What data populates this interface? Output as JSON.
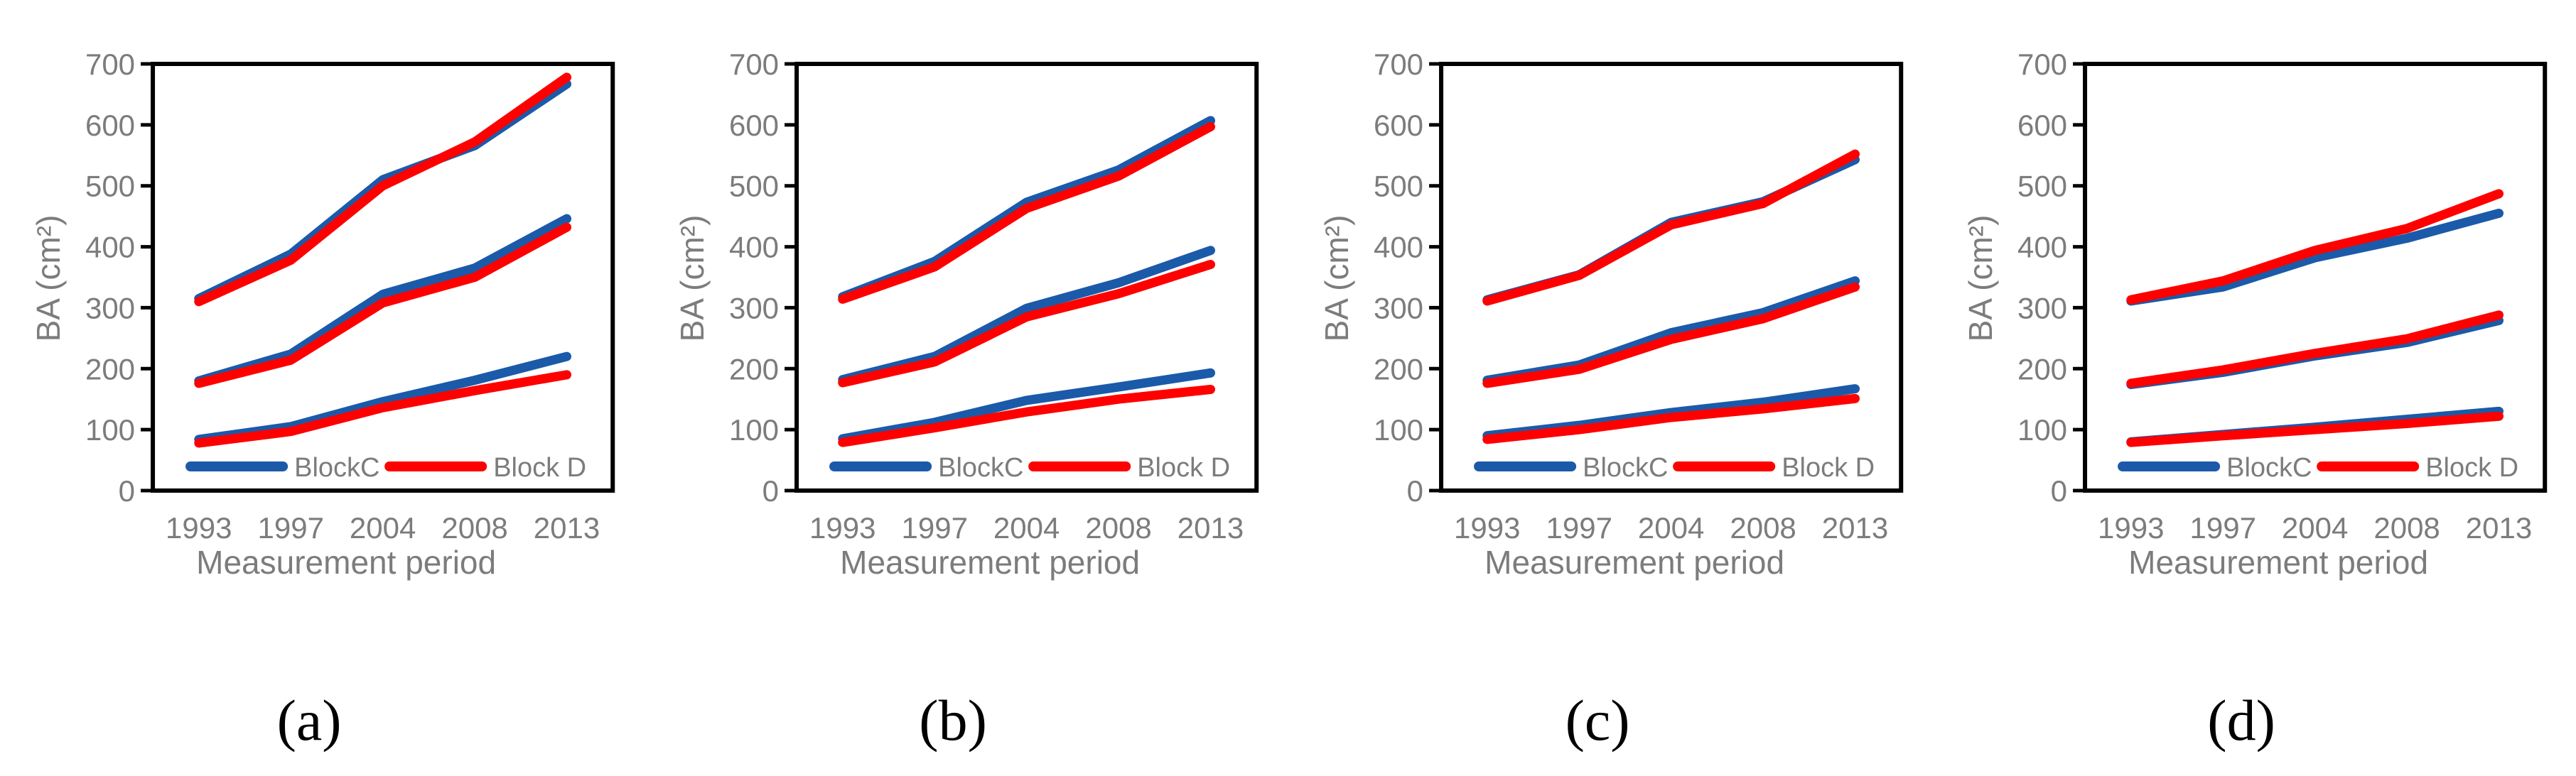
{
  "figure": {
    "background": "#FFFFFF",
    "colors": {
      "blockc_blue": "#1B5AA9",
      "blockd_red": "#FF0000",
      "axis_text_gray": "#7C7C7C",
      "frame_black": "#000000"
    }
  },
  "chart_data": [
    {
      "type": "line",
      "caption": "(a)",
      "categories": [
        "1993",
        "1997",
        "2004",
        "2008",
        "2013"
      ],
      "xlabel": "Measurement period",
      "ylabel": "BA (cm²)",
      "ylim": [
        0,
        700
      ],
      "y_ticks": [
        700,
        600,
        500,
        400,
        300,
        200,
        100,
        0
      ],
      "grid": false,
      "legend_position": "inside-bottom",
      "legend": [
        {
          "label": "BlockC",
          "color": "#1B5AA9"
        },
        {
          "label": "Block D",
          "color": "#FF0000"
        }
      ],
      "series": [
        {
          "name": "BlockC",
          "tier": "upper",
          "color": "#1B5AA9",
          "values": [
            315,
            388,
            510,
            566,
            667
          ]
        },
        {
          "name": "BlockC",
          "tier": "middle",
          "color": "#1B5AA9",
          "values": [
            180,
            224,
            322,
            365,
            446
          ]
        },
        {
          "name": "BlockC",
          "tier": "lower",
          "color": "#1B5AA9",
          "values": [
            84,
            105,
            146,
            181,
            220
          ]
        },
        {
          "name": "Block D",
          "tier": "upper",
          "color": "#FF0000",
          "values": [
            310,
            378,
            500,
            572,
            678
          ]
        },
        {
          "name": "Block D",
          "tier": "middle",
          "color": "#FF0000",
          "values": [
            176,
            214,
            308,
            350,
            432
          ]
        },
        {
          "name": "Block D",
          "tier": "lower",
          "color": "#FF0000",
          "values": [
            78,
            97,
            136,
            164,
            190
          ]
        }
      ]
    },
    {
      "type": "line",
      "caption": "(b)",
      "categories": [
        "1993",
        "1997",
        "2004",
        "2008",
        "2013"
      ],
      "xlabel": "Measurement period",
      "ylabel": "BA (cm²)",
      "ylim": [
        0,
        700
      ],
      "y_ticks": [
        700,
        600,
        500,
        400,
        300,
        200,
        100,
        0
      ],
      "grid": false,
      "legend_position": "inside-bottom",
      "legend": [
        {
          "label": "BlockC",
          "color": "#1B5AA9"
        },
        {
          "label": "Block D",
          "color": "#FF0000"
        }
      ],
      "series": [
        {
          "name": "BlockC",
          "tier": "upper",
          "color": "#1B5AA9",
          "values": [
            318,
            376,
            473,
            526,
            607
          ]
        },
        {
          "name": "BlockC",
          "tier": "middle",
          "color": "#1B5AA9",
          "values": [
            182,
            220,
            299,
            341,
            394
          ]
        },
        {
          "name": "BlockC",
          "tier": "lower",
          "color": "#1B5AA9",
          "values": [
            85,
            112,
            148,
            170,
            193
          ]
        },
        {
          "name": "Block D",
          "tier": "upper",
          "color": "#FF0000",
          "values": [
            314,
            367,
            463,
            516,
            597
          ]
        },
        {
          "name": "Block D",
          "tier": "middle",
          "color": "#FF0000",
          "values": [
            177,
            211,
            285,
            323,
            371
          ]
        },
        {
          "name": "Block D",
          "tier": "lower",
          "color": "#FF0000",
          "values": [
            79,
            103,
            129,
            150,
            166
          ]
        }
      ]
    },
    {
      "type": "line",
      "caption": "(c)",
      "categories": [
        "1993",
        "1997",
        "2004",
        "2008",
        "2013"
      ],
      "xlabel": "Measurement period",
      "ylabel": "BA (cm²)",
      "ylim": [
        0,
        700
      ],
      "y_ticks": [
        700,
        600,
        500,
        400,
        300,
        200,
        100,
        0
      ],
      "grid": false,
      "legend_position": "inside-bottom",
      "legend": [
        {
          "label": "BlockC",
          "color": "#1B5AA9"
        },
        {
          "label": "Block D",
          "color": "#FF0000"
        }
      ],
      "series": [
        {
          "name": "BlockC",
          "tier": "upper",
          "color": "#1B5AA9",
          "values": [
            313,
            354,
            440,
            474,
            543
          ]
        },
        {
          "name": "BlockC",
          "tier": "middle",
          "color": "#1B5AA9",
          "values": [
            181,
            206,
            259,
            292,
            344
          ]
        },
        {
          "name": "BlockC",
          "tier": "lower",
          "color": "#1B5AA9",
          "values": [
            90,
            107,
            128,
            145,
            167
          ]
        },
        {
          "name": "Block D",
          "tier": "upper",
          "color": "#FF0000",
          "values": [
            311,
            353,
            436,
            471,
            552
          ]
        },
        {
          "name": "Block D",
          "tier": "middle",
          "color": "#FF0000",
          "values": [
            176,
            199,
            248,
            282,
            334
          ]
        },
        {
          "name": "Block D",
          "tier": "lower",
          "color": "#FF0000",
          "values": [
            84,
            100,
            120,
            134,
            151
          ]
        }
      ]
    },
    {
      "type": "line",
      "caption": "(d)",
      "categories": [
        "1993",
        "1997",
        "2004",
        "2008",
        "2013"
      ],
      "xlabel": "Measurement period",
      "ylabel": "BA (cm²)",
      "ylim": [
        0,
        700
      ],
      "y_ticks": [
        700,
        600,
        500,
        400,
        300,
        200,
        100,
        0
      ],
      "grid": false,
      "legend_position": "inside-bottom",
      "legend": [
        {
          "label": "BlockC",
          "color": "#1B5AA9"
        },
        {
          "label": "Block D",
          "color": "#FF0000"
        }
      ],
      "series": [
        {
          "name": "BlockC",
          "tier": "upper",
          "color": "#1B5AA9",
          "values": [
            311,
            334,
            382,
            414,
            455
          ]
        },
        {
          "name": "BlockC",
          "tier": "middle",
          "color": "#1B5AA9",
          "values": [
            174,
            194,
            221,
            243,
            279
          ]
        },
        {
          "name": "BlockC",
          "tier": "lower",
          "color": "#1B5AA9",
          "values": [
            80,
            92,
            104,
            117,
            130
          ]
        },
        {
          "name": "Block D",
          "tier": "upper",
          "color": "#FF0000",
          "values": [
            313,
            344,
            394,
            430,
            487
          ]
        },
        {
          "name": "Block D",
          "tier": "middle",
          "color": "#FF0000",
          "values": [
            176,
            198,
            225,
            249,
            288
          ]
        },
        {
          "name": "Block D",
          "tier": "lower",
          "color": "#FF0000",
          "values": [
            79,
            90,
            100,
            110,
            122
          ]
        }
      ]
    }
  ]
}
